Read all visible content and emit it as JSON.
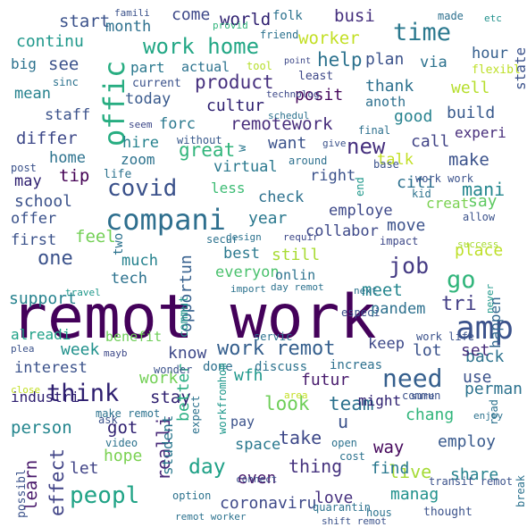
{
  "words": [
    {
      "text": "remot work",
      "color": "#44015a"
    },
    {
      "text": "compani",
      "color": "#2e6f8e"
    },
    {
      "text": "amp",
      "color": "#3b528b"
    },
    {
      "text": "need",
      "color": "#355f8d"
    },
    {
      "text": "peopl",
      "color": "#20a386"
    },
    {
      "text": "think",
      "color": "#2d1e6f"
    },
    {
      "text": "offic",
      "color": "#27ad81"
    },
    {
      "text": "time",
      "color": "#2a788e"
    },
    {
      "text": "work home",
      "color": "#22a785"
    },
    {
      "text": "covid",
      "color": "#3b528b"
    },
    {
      "text": "job",
      "color": "#443a83"
    },
    {
      "text": "go",
      "color": "#31b57b"
    },
    {
      "text": "one",
      "color": "#3b528b"
    },
    {
      "text": "work remot",
      "color": "#355f8d"
    },
    {
      "text": "look",
      "color": "#6ece58"
    },
    {
      "text": "team",
      "color": "#2c728e"
    },
    {
      "text": "new",
      "color": "#46307e"
    },
    {
      "text": "product",
      "color": "#46307e"
    },
    {
      "text": "remotework",
      "color": "#472d7b"
    },
    {
      "text": "great",
      "color": "#31b57b"
    },
    {
      "text": "help",
      "color": "#2c728e"
    },
    {
      "text": "day",
      "color": "#1fa187"
    },
    {
      "text": "coronaviru",
      "color": "#3e4989"
    },
    {
      "text": "effect",
      "color": "#414487"
    },
    {
      "text": "learn",
      "color": "#48186a"
    },
    {
      "text": "person",
      "color": "#24868e"
    },
    {
      "text": "live",
      "color": "#a5db36"
    },
    {
      "text": "thing",
      "color": "#46337f"
    },
    {
      "text": "employ",
      "color": "#38598c"
    },
    {
      "text": "chang",
      "color": "#31b57b"
    },
    {
      "text": "take",
      "color": "#3e4989"
    },
    {
      "text": "way",
      "color": "#46085c"
    },
    {
      "text": "find",
      "color": "#2a788e"
    },
    {
      "text": "share",
      "color": "#26828e"
    },
    {
      "text": "manag",
      "color": "#21918c"
    },
    {
      "text": "love",
      "color": "#46307e"
    },
    {
      "text": "even",
      "color": "#48186a"
    },
    {
      "text": "got",
      "color": "#2d1e6f"
    },
    {
      "text": "hope",
      "color": "#7ad151"
    },
    {
      "text": "let",
      "color": "#414487"
    },
    {
      "text": "stay",
      "color": "#2d1e6f"
    },
    {
      "text": "better",
      "color": "#27ad81"
    },
    {
      "text": "realli",
      "color": "#482878"
    },
    {
      "text": "futur",
      "color": "#481b6d"
    },
    {
      "text": "wfh",
      "color": "#1f988b"
    },
    {
      "text": "lot",
      "color": "#3b528b"
    },
    {
      "text": "back",
      "color": "#2c728e"
    },
    {
      "text": "use",
      "color": "#3b528b"
    },
    {
      "text": "set",
      "color": "#472d7b"
    },
    {
      "text": "perman",
      "color": "#2c728e"
    },
    {
      "text": "keep",
      "color": "#3e4989"
    },
    {
      "text": "u",
      "color": "#3b528b"
    },
    {
      "text": "might",
      "color": "#2d1e6f"
    },
    {
      "text": "know",
      "color": "#3e4989"
    },
    {
      "text": "work",
      "color": "#73d056"
    },
    {
      "text": "interest",
      "color": "#3b528b"
    },
    {
      "text": "week",
      "color": "#21918c"
    },
    {
      "text": "industri",
      "color": "#2d1e6f"
    },
    {
      "text": "alreadi",
      "color": "#1fa187"
    },
    {
      "text": "benefit",
      "color": "#6ece58"
    },
    {
      "text": "support",
      "color": "#26828e"
    },
    {
      "text": "tech",
      "color": "#2c728e"
    },
    {
      "text": "first",
      "color": "#3b528b"
    },
    {
      "text": "offer",
      "color": "#3b528b"
    },
    {
      "text": "feel",
      "color": "#73d056"
    },
    {
      "text": "much",
      "color": "#26828e"
    },
    {
      "text": "opportun",
      "color": "#355f8d"
    },
    {
      "text": "best",
      "color": "#2a788e"
    },
    {
      "text": "everyon",
      "color": "#4ac16d"
    },
    {
      "text": "still",
      "color": "#a8db34"
    },
    {
      "text": "onlin",
      "color": "#2c728e"
    },
    {
      "text": "meet",
      "color": "#24868e"
    },
    {
      "text": "tri",
      "color": "#433e85"
    },
    {
      "text": "pandem",
      "color": "#2d708e"
    },
    {
      "text": "happen",
      "color": "#31668e"
    },
    {
      "text": "place",
      "color": "#bddf26"
    },
    {
      "text": "move",
      "color": "#3b528b"
    },
    {
      "text": "collabor",
      "color": "#3e4989"
    },
    {
      "text": "employe",
      "color": "#3e4989"
    },
    {
      "text": "year",
      "color": "#2a788e"
    },
    {
      "text": "check",
      "color": "#2d708e"
    },
    {
      "text": "right",
      "color": "#3b528b"
    },
    {
      "text": "citi",
      "color": "#2d708e"
    },
    {
      "text": "mani",
      "color": "#24868e"
    },
    {
      "text": "make",
      "color": "#3b528b"
    },
    {
      "text": "talk",
      "color": "#c2df23"
    },
    {
      "text": "call",
      "color": "#414487"
    },
    {
      "text": "creat",
      "color": "#7ad151"
    },
    {
      "text": "say",
      "color": "#5ec962"
    },
    {
      "text": "good",
      "color": "#26828e"
    },
    {
      "text": "build",
      "color": "#38598c"
    },
    {
      "text": "experi",
      "color": "#472d7b"
    },
    {
      "text": "well",
      "color": "#b5de2b"
    },
    {
      "text": "state",
      "color": "#3b528b"
    },
    {
      "text": "anoth",
      "color": "#2d708e"
    },
    {
      "text": "thank",
      "color": "#2d708e"
    },
    {
      "text": "plan",
      "color": "#3b528b"
    },
    {
      "text": "via",
      "color": "#2c728e"
    },
    {
      "text": "hour",
      "color": "#355f8d"
    },
    {
      "text": "flexibl",
      "color": "#bddf26"
    },
    {
      "text": "posit",
      "color": "#46085c"
    },
    {
      "text": "want",
      "color": "#3b528b"
    },
    {
      "text": "cultur",
      "color": "#2d1e6f"
    },
    {
      "text": "virtual",
      "color": "#2a788e"
    },
    {
      "text": "less",
      "color": "#3dbc74"
    },
    {
      "text": "school",
      "color": "#3b528b"
    },
    {
      "text": "may",
      "color": "#2d1e6f"
    },
    {
      "text": "tip",
      "color": "#440154"
    },
    {
      "text": "home",
      "color": "#2c728e"
    },
    {
      "text": "zoom",
      "color": "#2c728e"
    },
    {
      "text": "hire",
      "color": "#26828e"
    },
    {
      "text": "forc",
      "color": "#2a788e"
    },
    {
      "text": "differ",
      "color": "#3e4989"
    },
    {
      "text": "staff",
      "color": "#3b528b"
    },
    {
      "text": "mean",
      "color": "#26828e"
    },
    {
      "text": "today",
      "color": "#38598c"
    },
    {
      "text": "part",
      "color": "#2a788e"
    },
    {
      "text": "actual",
      "color": "#2c728e"
    },
    {
      "text": "big",
      "color": "#2c728e"
    },
    {
      "text": "see",
      "color": "#3b528b"
    },
    {
      "text": "continu",
      "color": "#1f988b"
    },
    {
      "text": "start",
      "color": "#3b528b"
    },
    {
      "text": "month",
      "color": "#2d708e"
    },
    {
      "text": "come",
      "color": "#3e4989"
    },
    {
      "text": "world",
      "color": "#2d1e6f"
    },
    {
      "text": "busi",
      "color": "#46307e"
    },
    {
      "text": "worker",
      "color": "#c2df23"
    },
    {
      "text": "folk",
      "color": "#2c728e"
    },
    {
      "text": "made",
      "color": "#2d708e"
    },
    {
      "text": "etc",
      "color": "#21918c"
    },
    {
      "text": "famili",
      "color": "#3b528b"
    },
    {
      "text": "provid",
      "color": "#31b57b"
    },
    {
      "text": "friend",
      "color": "#2c728e"
    },
    {
      "text": "tool",
      "color": "#b5de2b"
    },
    {
      "text": "point",
      "color": "#3e4989"
    },
    {
      "text": "least",
      "color": "#3e4989"
    },
    {
      "text": "sinc",
      "color": "#2c728e"
    },
    {
      "text": "current",
      "color": "#3b528b"
    },
    {
      "text": "technolog",
      "color": "#3e4989"
    },
    {
      "text": "schedul",
      "color": "#2c728e"
    },
    {
      "text": "seem",
      "color": "#3e4989"
    },
    {
      "text": "without",
      "color": "#38598c"
    },
    {
      "text": "w",
      "color": "#2a788e"
    },
    {
      "text": "final",
      "color": "#2d708e"
    },
    {
      "text": "give",
      "color": "#3b528b"
    },
    {
      "text": "post",
      "color": "#3b528b"
    },
    {
      "text": "life",
      "color": "#2c728e"
    },
    {
      "text": "around",
      "color": "#2d708e"
    },
    {
      "text": "base",
      "color": "#3b528b"
    },
    {
      "text": "work work",
      "color": "#3b528b"
    },
    {
      "text": "kid",
      "color": "#2c728e"
    },
    {
      "text": "end",
      "color": "#1f988b"
    },
    {
      "text": "allow",
      "color": "#3b528b"
    },
    {
      "text": "secur",
      "color": "#2c728e"
    },
    {
      "text": "design",
      "color": "#2c728e"
    },
    {
      "text": "requir",
      "color": "#3e4989"
    },
    {
      "text": "impact",
      "color": "#3e4989"
    },
    {
      "text": "success",
      "color": "#a8db34"
    },
    {
      "text": "two",
      "color": "#2c728e"
    },
    {
      "text": "travel",
      "color": "#1f988b"
    },
    {
      "text": "import",
      "color": "#2c728e"
    },
    {
      "text": "day remot",
      "color": "#2c728e"
    },
    {
      "text": "next",
      "color": "#2c728e"
    },
    {
      "text": "never",
      "color": "#1f988b"
    },
    {
      "text": "commut",
      "color": "#1f988b"
    },
    {
      "text": "especi",
      "color": "#3b528b"
    },
    {
      "text": "servic",
      "color": "#2c728e"
    },
    {
      "text": "work life",
      "color": "#3b528b"
    },
    {
      "text": "plea",
      "color": "#3b528b"
    },
    {
      "text": "mayb",
      "color": "#3e4989"
    },
    {
      "text": "done",
      "color": "#2d708e"
    },
    {
      "text": "discuss",
      "color": "#2c728e"
    },
    {
      "text": "increas",
      "color": "#2d708e"
    },
    {
      "text": "wonder",
      "color": "#3b528b"
    },
    {
      "text": "close",
      "color": "#c2df23"
    },
    {
      "text": "make remot",
      "color": "#2c728e"
    },
    {
      "text": "ask",
      "color": "#3b528b"
    },
    {
      "text": "video",
      "color": "#2c728e"
    },
    {
      "text": "expect",
      "color": "#2c728e"
    },
    {
      "text": "workfromhom",
      "color": "#1f988b"
    },
    {
      "text": "area",
      "color": "#c2df23"
    },
    {
      "text": "commun",
      "color": "#3b528b"
    },
    {
      "text": "sure",
      "color": "#3b528b"
    },
    {
      "text": "enjoy",
      "color": "#2c728e"
    },
    {
      "text": "pay",
      "color": "#3b528b"
    },
    {
      "text": "space",
      "color": "#2a788e"
    },
    {
      "text": "student",
      "color": "#2a788e"
    },
    {
      "text": "connect",
      "color": "#3b528b"
    },
    {
      "text": "cost",
      "color": "#2c728e"
    },
    {
      "text": "open",
      "color": "#2c728e"
    },
    {
      "text": "transit remot",
      "color": "#3b528b"
    },
    {
      "text": "read",
      "color": "#2c728e"
    },
    {
      "text": "break",
      "color": "#2c728e"
    },
    {
      "text": "possibl",
      "color": "#3b528b"
    },
    {
      "text": "option",
      "color": "#2c728e"
    },
    {
      "text": "remot worker",
      "color": "#2c728e"
    },
    {
      "text": "quarantin",
      "color": "#2c728e"
    },
    {
      "text": "shift remot",
      "color": "#3b528b"
    },
    {
      "text": "hous",
      "color": "#2c728e"
    },
    {
      "text": "thought",
      "color": "#3b528b"
    }
  ]
}
